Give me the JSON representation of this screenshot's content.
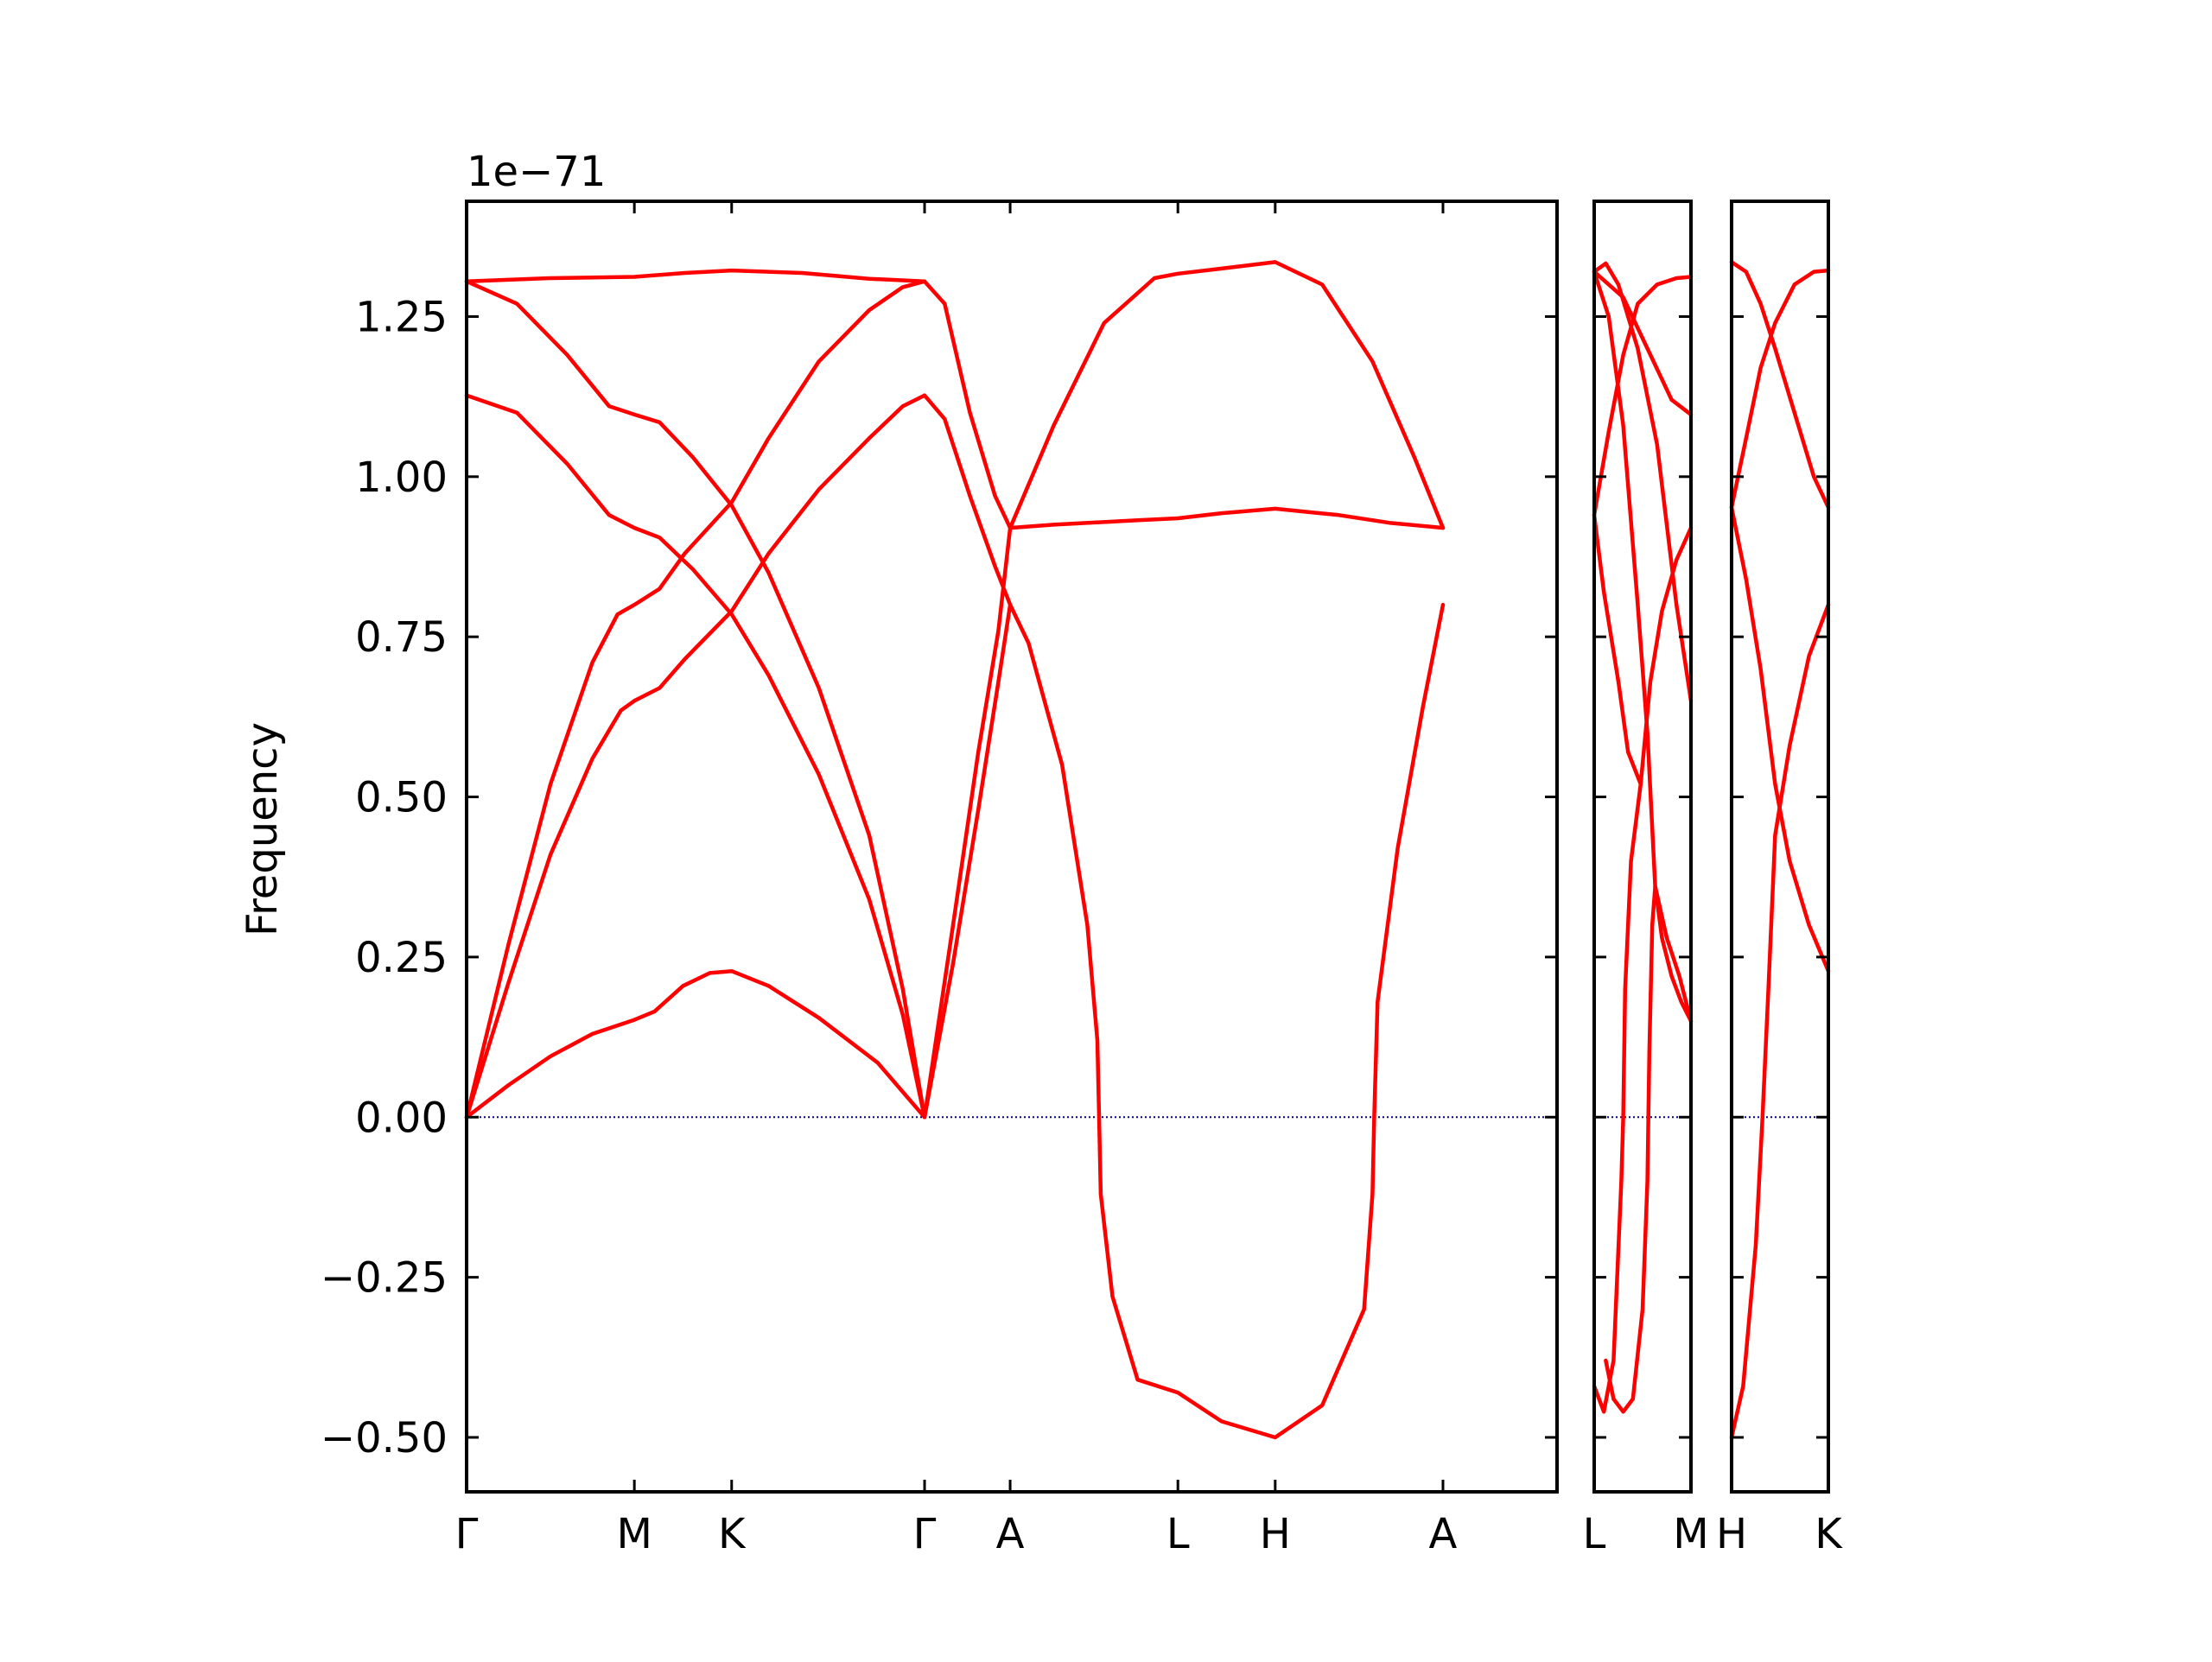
{
  "chart_data": {
    "type": "line",
    "ylabel": "Frequency",
    "offset_text": "1e−71",
    "ylim": [
      -0.585,
      1.43
    ],
    "yticks": [
      -0.5,
      -0.25,
      0.0,
      0.25,
      0.5,
      0.75,
      1.0,
      1.25
    ],
    "ytick_labels": [
      "−0.50",
      "−0.25",
      "0.00",
      "0.25",
      "0.50",
      "0.75",
      "1.00",
      "1.25"
    ],
    "grid": false,
    "band_color": "#ff0000",
    "zero_line_color": "#00008b",
    "panels": [
      {
        "xrange": [
          0,
          6.5
        ],
        "xticks": [
          0,
          1.0,
          1.58,
          2.73,
          3.24,
          4.24,
          4.82,
          5.82
        ],
        "xtick_labels": [
          "Γ",
          "M",
          "K",
          "Γ",
          "A",
          "L",
          "H",
          "A"
        ],
        "bands": [
          [
            [
              0,
              0
            ],
            [
              0.25,
              0.05
            ],
            [
              0.5,
              0.095
            ],
            [
              0.75,
              0.13
            ],
            [
              1.0,
              0.152
            ],
            [
              1.12,
              0.165
            ],
            [
              1.29,
              0.205
            ],
            [
              1.45,
              0.225
            ],
            [
              1.58,
              0.228
            ],
            [
              1.8,
              0.205
            ],
            [
              2.1,
              0.155
            ],
            [
              2.45,
              0.085
            ],
            [
              2.73,
              0
            ]
          ],
          [
            [
              0,
              0
            ],
            [
              0.25,
              0.21
            ],
            [
              0.5,
              0.41
            ],
            [
              0.75,
              0.56
            ],
            [
              0.92,
              0.635
            ],
            [
              1.0,
              0.65
            ],
            [
              1.15,
              0.67
            ],
            [
              1.3,
              0.715
            ],
            [
              1.58,
              0.79
            ],
            [
              1.8,
              0.88
            ],
            [
              2.1,
              0.98
            ],
            [
              2.4,
              1.06
            ],
            [
              2.6,
              1.11
            ],
            [
              2.73,
              1.127
            ]
          ],
          [
            [
              0,
              0
            ],
            [
              0.25,
              0.27
            ],
            [
              0.5,
              0.52
            ],
            [
              0.75,
              0.71
            ],
            [
              0.9,
              0.785
            ],
            [
              1.0,
              0.8
            ],
            [
              1.15,
              0.825
            ],
            [
              1.3,
              0.88
            ],
            [
              1.58,
              0.96
            ],
            [
              1.8,
              1.06
            ],
            [
              2.1,
              1.18
            ],
            [
              2.4,
              1.26
            ],
            [
              2.6,
              1.296
            ],
            [
              2.73,
              1.305
            ]
          ],
          [
            [
              0,
              1.127
            ],
            [
              0.3,
              1.1
            ],
            [
              0.6,
              1.02
            ],
            [
              0.85,
              0.94
            ],
            [
              1.0,
              0.92
            ],
            [
              1.15,
              0.905
            ],
            [
              1.35,
              0.855
            ],
            [
              1.58,
              0.785
            ],
            [
              1.8,
              0.69
            ],
            [
              2.1,
              0.535
            ],
            [
              2.4,
              0.34
            ],
            [
              2.6,
              0.16
            ],
            [
              2.73,
              0
            ]
          ],
          [
            [
              0,
              1.305
            ],
            [
              0.3,
              1.27
            ],
            [
              0.6,
              1.19
            ],
            [
              0.85,
              1.11
            ],
            [
              1.0,
              1.097
            ],
            [
              1.15,
              1.085
            ],
            [
              1.35,
              1.03
            ],
            [
              1.58,
              0.955
            ],
            [
              1.8,
              0.85
            ],
            [
              2.1,
              0.67
            ],
            [
              2.4,
              0.44
            ],
            [
              2.6,
              0.2
            ],
            [
              2.73,
              0
            ]
          ],
          [
            [
              0,
              1.305
            ],
            [
              0.5,
              1.31
            ],
            [
              1.0,
              1.312
            ],
            [
              1.3,
              1.318
            ],
            [
              1.58,
              1.322
            ],
            [
              2.0,
              1.318
            ],
            [
              2.4,
              1.309
            ],
            [
              2.73,
              1.305
            ]
          ],
          [
            [
              2.73,
              1.305
            ],
            [
              2.85,
              1.27
            ],
            [
              3.0,
              1.1
            ],
            [
              3.15,
              0.97
            ],
            [
              3.24,
              0.92
            ]
          ],
          [
            [
              2.73,
              1.127
            ],
            [
              2.85,
              1.09
            ],
            [
              3.0,
              0.97
            ],
            [
              3.15,
              0.86
            ],
            [
              3.24,
              0.8
            ],
            [
              3.35,
              0.74
            ],
            [
              3.55,
              0.55
            ],
            [
              3.7,
              0.3
            ],
            [
              3.76,
              0.12
            ],
            [
              3.77,
              0
            ],
            [
              3.78,
              -0.12
            ],
            [
              3.85,
              -0.28
            ],
            [
              4.0,
              -0.41
            ],
            [
              4.24,
              -0.43
            ],
            [
              4.5,
              -0.475
            ],
            [
              4.82,
              -0.5
            ],
            [
              5.1,
              -0.45
            ],
            [
              5.35,
              -0.3
            ],
            [
              5.4,
              -0.12
            ],
            [
              5.41,
              0
            ],
            [
              5.43,
              0.18
            ],
            [
              5.55,
              0.42
            ],
            [
              5.7,
              0.64
            ],
            [
              5.82,
              0.8
            ]
          ],
          [
            [
              2.73,
              0
            ],
            [
              2.9,
              0.3
            ],
            [
              3.05,
              0.57
            ],
            [
              3.17,
              0.76
            ],
            [
              3.24,
              0.92
            ],
            [
              3.5,
              0.925
            ],
            [
              4.0,
              0.932
            ],
            [
              4.24,
              0.935
            ],
            [
              4.5,
              0.943
            ],
            [
              4.82,
              0.95
            ],
            [
              5.2,
              0.94
            ],
            [
              5.5,
              0.928
            ],
            [
              5.82,
              0.92
            ]
          ],
          [
            [
              2.73,
              0
            ],
            [
              2.9,
              0.24
            ],
            [
              3.05,
              0.48
            ],
            [
              3.17,
              0.68
            ],
            [
              3.24,
              0.8
            ]
          ],
          [
            [
              3.24,
              0.92
            ],
            [
              3.5,
              1.08
            ],
            [
              3.8,
              1.24
            ],
            [
              4.1,
              1.31
            ],
            [
              4.24,
              1.317
            ],
            [
              4.5,
              1.325
            ],
            [
              4.82,
              1.335
            ],
            [
              5.1,
              1.3
            ],
            [
              5.4,
              1.18
            ],
            [
              5.65,
              1.03
            ],
            [
              5.82,
              0.92
            ]
          ]
        ]
      },
      {
        "xrange": [
          0,
          1
        ],
        "xticks": [
          0,
          1
        ],
        "xtick_labels": [
          "L",
          "M"
        ],
        "bands": [
          [
            [
              0,
              1.32
            ],
            [
              0.12,
              1.333
            ],
            [
              0.25,
              1.3
            ],
            [
              0.45,
              1.2
            ],
            [
              0.65,
              1.05
            ],
            [
              0.85,
              0.8
            ],
            [
              1.0,
              0.65
            ]
          ],
          [
            [
              0,
              0.94
            ],
            [
              0.15,
              1.07
            ],
            [
              0.3,
              1.19
            ],
            [
              0.45,
              1.27
            ],
            [
              0.65,
              1.3
            ],
            [
              0.85,
              1.31
            ],
            [
              1.0,
              1.312
            ]
          ],
          [
            [
              0,
              0.94
            ],
            [
              0.1,
              0.82
            ],
            [
              0.25,
              0.68
            ],
            [
              0.35,
              0.57
            ],
            [
              0.48,
              0.52
            ],
            [
              0.58,
              0.68
            ],
            [
              0.7,
              0.79
            ],
            [
              0.85,
              0.87
            ],
            [
              1.0,
              0.92
            ]
          ],
          [
            [
              0,
              1.32
            ],
            [
              0.15,
              1.25
            ],
            [
              0.3,
              1.08
            ],
            [
              0.45,
              0.8
            ],
            [
              0.55,
              0.6
            ],
            [
              0.63,
              0.36
            ],
            [
              0.75,
              0.28
            ],
            [
              0.88,
              0.22
            ],
            [
              1.0,
              0.15
            ]
          ],
          [
            [
              0,
              -0.42
            ],
            [
              0.1,
              -0.46
            ],
            [
              0.2,
              -0.38
            ],
            [
              0.28,
              -0.1
            ],
            [
              0.3,
              0
            ],
            [
              0.32,
              0.2
            ],
            [
              0.38,
              0.4
            ],
            [
              0.48,
              0.52
            ]
          ],
          [
            [
              0.63,
              0.36
            ],
            [
              0.6,
              0.3
            ],
            [
              0.57,
              0.1
            ],
            [
              0.56,
              0
            ],
            [
              0.55,
              -0.1
            ],
            [
              0.5,
              -0.3
            ],
            [
              0.4,
              -0.44
            ],
            [
              0.3,
              -0.46
            ],
            [
              0.2,
              -0.44
            ],
            [
              0.12,
              -0.38
            ]
          ],
          [
            [
              0.63,
              0.36
            ],
            [
              0.7,
              0.28
            ],
            [
              0.8,
              0.22
            ],
            [
              0.9,
              0.18
            ],
            [
              1.0,
              0.15
            ]
          ],
          [
            [
              0,
              1.32
            ],
            [
              0.3,
              1.28
            ],
            [
              0.55,
              1.2
            ],
            [
              0.8,
              1.12
            ],
            [
              1.0,
              1.097
            ]
          ]
        ]
      },
      {
        "xrange": [
          0,
          1
        ],
        "xticks": [
          0,
          1
        ],
        "xtick_labels": [
          "H",
          "K"
        ],
        "bands": [
          [
            [
              0,
              1.335
            ],
            [
              0.15,
              1.32
            ],
            [
              0.3,
              1.27
            ],
            [
              0.45,
              1.2
            ],
            [
              0.65,
              1.1
            ],
            [
              0.85,
              1.0
            ],
            [
              1.0,
              0.952
            ]
          ],
          [
            [
              0,
              0.952
            ],
            [
              0.15,
              1.06
            ],
            [
              0.3,
              1.17
            ],
            [
              0.45,
              1.24
            ],
            [
              0.65,
              1.3
            ],
            [
              0.85,
              1.32
            ],
            [
              1.0,
              1.322
            ]
          ],
          [
            [
              0,
              0.952
            ],
            [
              0.15,
              0.84
            ],
            [
              0.3,
              0.7
            ],
            [
              0.45,
              0.52
            ],
            [
              0.6,
              0.4
            ],
            [
              0.8,
              0.3
            ],
            [
              1.0,
              0.228
            ]
          ],
          [
            [
              0,
              -0.5
            ],
            [
              0.12,
              -0.42
            ],
            [
              0.25,
              -0.2
            ],
            [
              0.32,
              0
            ],
            [
              0.38,
              0.2
            ],
            [
              0.45,
              0.44
            ],
            [
              0.6,
              0.58
            ],
            [
              0.8,
              0.72
            ],
            [
              1.0,
              0.8
            ]
          ]
        ]
      }
    ]
  }
}
